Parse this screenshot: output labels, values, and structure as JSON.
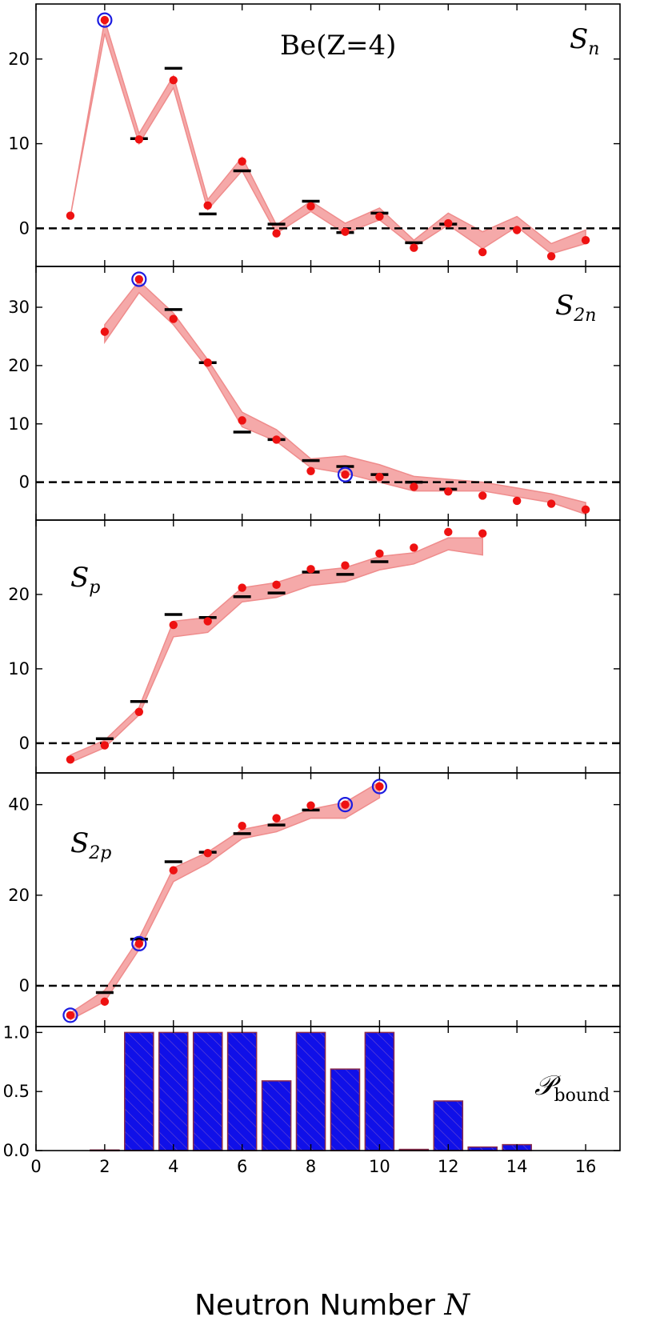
{
  "chart_data": [
    {
      "type": "line",
      "label": "S_n",
      "title": "Be(Z=4)",
      "ylim": [
        -4.5,
        26.5
      ],
      "yticks": [
        0,
        10,
        20
      ],
      "ytick_labels": [
        "0",
        "10",
        "20"
      ],
      "band": {
        "x": [
          1,
          2,
          3,
          4,
          5,
          6,
          7,
          8,
          9,
          10,
          11,
          12,
          13,
          14,
          15,
          16
        ],
        "low": [
          1.4,
          23.0,
          10.0,
          16.6,
          2.2,
          6.8,
          -0.6,
          2.0,
          -0.6,
          1.0,
          -2.2,
          0.4,
          -2.4,
          0.2,
          -3.0,
          -1.8
        ],
        "high": [
          1.4,
          24.6,
          11.2,
          18.0,
          3.4,
          8.4,
          0.4,
          3.2,
          0.6,
          2.4,
          -1.4,
          1.8,
          -0.4,
          1.4,
          -1.8,
          -0.2
        ]
      },
      "predictions": {
        "x": [
          1,
          2,
          3,
          4,
          5,
          6,
          7,
          8,
          9,
          10,
          11,
          12,
          13,
          14,
          15,
          16
        ],
        "y": [
          1.5,
          24.6,
          10.5,
          17.5,
          2.7,
          7.9,
          -0.6,
          2.6,
          -0.4,
          1.4,
          -2.3,
          0.6,
          -2.8,
          -0.2,
          -3.3,
          -1.4
        ]
      },
      "experiment": {
        "x": [
          3,
          4,
          5,
          6,
          7,
          8,
          9,
          10,
          11,
          12
        ],
        "y": [
          10.6,
          18.9,
          1.7,
          6.8,
          0.5,
          3.2,
          -0.5,
          1.8,
          -1.7,
          0.5
        ]
      },
      "highlighted": {
        "x": [
          2
        ],
        "y": [
          24.6
        ]
      },
      "zero_line": 0
    },
    {
      "type": "line",
      "label": "S_2n",
      "ylim": [
        -6.5,
        37
      ],
      "yticks": [
        0,
        10,
        20,
        30
      ],
      "ytick_labels": [
        "0",
        "10",
        "20",
        "30"
      ],
      "band": {
        "x": [
          2,
          3,
          4,
          5,
          6,
          7,
          8,
          9,
          10,
          11,
          12,
          13,
          14,
          15,
          16
        ],
        "low": [
          24.0,
          32.5,
          27.0,
          19.5,
          9.5,
          7.0,
          2.5,
          1.5,
          0.0,
          -1.5,
          -1.5,
          -1.5,
          -2.5,
          -3.5,
          -5.5
        ],
        "high": [
          27.0,
          34.5,
          29.0,
          21.0,
          12.0,
          9.0,
          4.0,
          4.5,
          3.0,
          1.0,
          0.5,
          0.0,
          -1.0,
          -2.0,
          -3.5
        ]
      },
      "predictions": {
        "x": [
          2,
          3,
          4,
          5,
          6,
          7,
          8,
          9,
          10,
          11,
          12,
          13,
          14,
          15,
          16
        ],
        "y": [
          25.8,
          34.8,
          28.0,
          20.5,
          10.6,
          7.3,
          1.9,
          1.3,
          0.9,
          -0.8,
          -1.6,
          -2.3,
          -3.2,
          -3.7,
          -4.7
        ]
      },
      "experiment": {
        "x": [
          4,
          5,
          6,
          7,
          8,
          9,
          10,
          11,
          12
        ],
        "y": [
          29.6,
          20.5,
          8.6,
          7.3,
          3.7,
          2.7,
          1.3,
          0.0,
          -1.2
        ]
      },
      "highlighted": {
        "x": [
          3,
          9
        ],
        "y": [
          34.8,
          1.3
        ]
      },
      "zero_line": 0
    },
    {
      "type": "line",
      "label": "S_p",
      "ylim": [
        -4,
        30
      ],
      "yticks": [
        0,
        10,
        20
      ],
      "ytick_labels": [
        "0",
        "10",
        "20"
      ],
      "band": {
        "x": [
          1,
          2,
          3,
          4,
          5,
          6,
          7,
          8,
          9,
          10,
          11,
          12,
          13
        ],
        "low": [
          -2.6,
          -0.6,
          3.8,
          14.3,
          14.9,
          19.0,
          19.6,
          21.2,
          21.7,
          23.3,
          24.1,
          26.0,
          25.3
        ],
        "high": [
          -1.6,
          0.4,
          4.8,
          16.4,
          16.9,
          20.9,
          21.6,
          23.1,
          23.6,
          25.1,
          25.6,
          27.6,
          27.6
        ]
      },
      "predictions": {
        "x": [
          1,
          2,
          3,
          4,
          5,
          6,
          7,
          8,
          9,
          10,
          11,
          12,
          13
        ],
        "y": [
          -2.2,
          -0.3,
          4.2,
          15.9,
          16.4,
          20.9,
          21.3,
          23.4,
          23.9,
          25.5,
          26.3,
          28.4,
          28.2
        ]
      },
      "experiment": {
        "x": [
          2,
          3,
          4,
          5,
          6,
          7,
          8,
          9,
          10
        ],
        "y": [
          0.6,
          5.6,
          17.3,
          16.9,
          19.7,
          20.2,
          23.0,
          22.7,
          24.4
        ]
      },
      "highlighted": {
        "x": [],
        "y": []
      },
      "zero_line": 0
    },
    {
      "type": "line",
      "label": "S_2p",
      "ylim": [
        -9,
        47
      ],
      "yticks": [
        0,
        20,
        40
      ],
      "ytick_labels": [
        "0",
        "20",
        "40"
      ],
      "band": {
        "x": [
          1,
          2,
          3,
          4,
          5,
          6,
          7,
          8,
          9,
          10
        ],
        "low": [
          -7.5,
          -3.5,
          8.0,
          23.0,
          27.0,
          32.5,
          34.0,
          37.0,
          37.0,
          41.5
        ],
        "high": [
          -6.0,
          -1.0,
          10.5,
          26.0,
          29.5,
          34.5,
          36.0,
          39.0,
          40.5,
          45.0
        ]
      },
      "predictions": {
        "x": [
          1,
          2,
          3,
          4,
          5,
          6,
          7,
          8,
          9,
          10
        ],
        "y": [
          -6.5,
          -3.5,
          9.3,
          25.5,
          29.3,
          35.3,
          37.0,
          39.8,
          40.0,
          44.0
        ]
      },
      "experiment": {
        "x": [
          2,
          3,
          4,
          5,
          6,
          7,
          8
        ],
        "y": [
          -1.5,
          10.3,
          27.4,
          29.5,
          33.6,
          35.5,
          38.8
        ]
      },
      "highlighted": {
        "x": [
          1,
          3,
          9,
          10
        ],
        "y": [
          -6.5,
          9.3,
          40.0,
          44.0
        ]
      },
      "zero_line": 0
    },
    {
      "type": "bar",
      "label": "P_bound",
      "ylim": [
        0,
        1.05
      ],
      "yticks": [
        0,
        0.5,
        1
      ],
      "ytick_labels": [
        "0.0",
        "0.5",
        "1.0"
      ],
      "categories": [
        1,
        2,
        3,
        4,
        5,
        6,
        7,
        8,
        9,
        10,
        11,
        12,
        13,
        14,
        15,
        16
      ],
      "values": [
        0.0,
        0.005,
        1.0,
        1.0,
        1.0,
        1.0,
        0.59,
        1.0,
        0.69,
        1.0,
        0.01,
        0.42,
        0.03,
        0.05,
        0.0,
        0.0
      ],
      "xlim": [
        0,
        17
      ],
      "xticks": [
        0,
        2,
        4,
        6,
        8,
        10,
        12,
        14,
        16
      ],
      "xtick_labels": [
        "0",
        "2",
        "4",
        "6",
        "8",
        "10",
        "12",
        "14",
        "16"
      ],
      "xlabel": "Neutron Number N"
    }
  ],
  "colors": {
    "band": "#f4a0a0",
    "band_edge": "#ef8c8c",
    "prediction_marker": "#ee1111",
    "highlight_ring": "#1c1ce0",
    "experiment_dash": "#000000",
    "bar_fill": "#1010e8",
    "bar_edge": "#8a2a4a",
    "zero_line": "#000000"
  },
  "labels": {
    "title_text": "Be(Z=4)",
    "panel_sn": "S",
    "panel_sn_sub": "n",
    "panel_s2n": "S",
    "panel_s2n_sub": "2n",
    "panel_sp": "S",
    "panel_sp_sub": "p",
    "panel_s2p": "S",
    "panel_s2p_sub": "2p",
    "panel_pbound": "𝒫",
    "panel_pbound_sub": "bound",
    "xlabel_text": "Neutron Number ",
    "xlabel_var": "N"
  }
}
